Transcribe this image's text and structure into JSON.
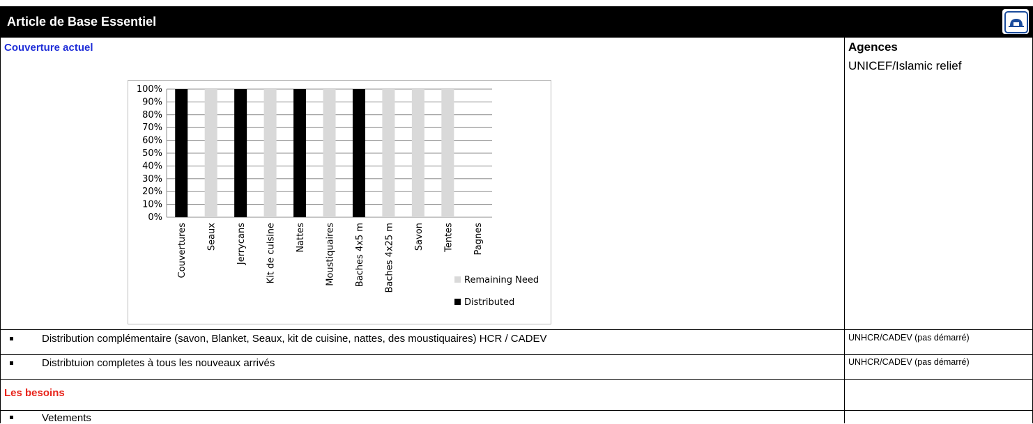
{
  "header": {
    "title": "Article de  Base Essentiel",
    "home_icon": "home-icon"
  },
  "sections": {
    "coverage_label": "Couverture actuel",
    "agencies_header": "Agences",
    "needs_label": "Les besoins"
  },
  "agencies": {
    "chart_row": "UNICEF/Islamic relief",
    "row1": "UNHCR/CADEV (pas démarré)",
    "row2": "UNHCR/CADEV (pas démarré)"
  },
  "items": {
    "row1": "Distribution complémentaire (savon, Blanket, Seaux, kit de cuisine, nattes, des moustiquaires) HCR / CADEV",
    "row2": "Distribtuion completes à tous les nouveaux arrivés",
    "needs1": "Vetements"
  },
  "colors": {
    "distributed": "#000000",
    "remaining": "#d9d9d9",
    "title_bg": "#000000",
    "section_blue": "#1f2ed8",
    "section_red": "#e8231a"
  },
  "chart_data": {
    "type": "bar",
    "stacked": true,
    "categories": [
      "Couvertures",
      "Seaux",
      "Jerrycans",
      "Kit de cuisine",
      "Nattes",
      "Moustiquaires",
      "Baches 4x5 m",
      "Baches 4x25 m",
      "Savon",
      "Tentes",
      "Pagnes"
    ],
    "series": [
      {
        "name": "Distributed",
        "color": "#000000",
        "values": [
          100,
          0,
          100,
          0,
          100,
          0,
          100,
          0,
          0,
          0,
          0
        ]
      },
      {
        "name": "Remaining Need",
        "color": "#d9d9d9",
        "values": [
          0,
          100,
          0,
          100,
          0,
          100,
          0,
          100,
          100,
          100,
          0
        ]
      }
    ],
    "yticks": [
      "0%",
      "10%",
      "20%",
      "30%",
      "40%",
      "50%",
      "60%",
      "70%",
      "80%",
      "90%",
      "100%"
    ],
    "ylim": [
      0,
      100
    ],
    "legend_position": "right",
    "grid": true
  }
}
